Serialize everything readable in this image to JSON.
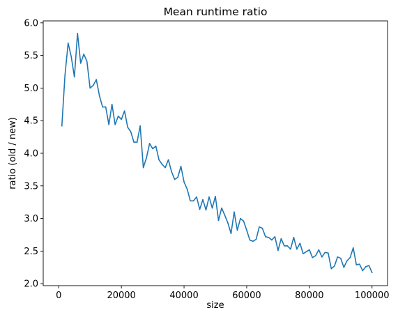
{
  "chart_data": {
    "type": "line",
    "title": "Mean runtime ratio",
    "xlabel": "size",
    "ylabel": "ratio (old / new)",
    "xlim": [
      -4950,
      104950
    ],
    "ylim": [
      1.97,
      6.03
    ],
    "xticks": [
      0,
      20000,
      40000,
      60000,
      80000,
      100000
    ],
    "xtick_labels": [
      "0",
      "20000",
      "40000",
      "60000",
      "80000",
      "100000"
    ],
    "yticks": [
      2.0,
      2.5,
      3.0,
      3.5,
      4.0,
      4.5,
      5.0,
      5.5,
      6.0
    ],
    "ytick_labels": [
      "2.0",
      "2.5",
      "3.0",
      "3.5",
      "4.0",
      "4.5",
      "5.0",
      "5.5",
      "6.0"
    ],
    "grid": false,
    "series": [
      {
        "color": "#1f77b4",
        "x": [
          1000,
          2000,
          3000,
          4000,
          5000,
          6000,
          7000,
          8000,
          9000,
          10000,
          11000,
          12000,
          13000,
          14000,
          15000,
          16000,
          17000,
          18000,
          19000,
          20000,
          21000,
          22000,
          23000,
          24000,
          25000,
          26000,
          27000,
          28000,
          29000,
          30000,
          31000,
          32000,
          33000,
          34000,
          35000,
          36000,
          37000,
          38000,
          39000,
          40000,
          41000,
          42000,
          43000,
          44000,
          45000,
          46000,
          47000,
          48000,
          49000,
          50000,
          51000,
          52000,
          53000,
          54000,
          55000,
          56000,
          57000,
          58000,
          59000,
          60000,
          61000,
          62000,
          63000,
          64000,
          65000,
          66000,
          67000,
          68000,
          69000,
          70000,
          71000,
          72000,
          73000,
          74000,
          75000,
          76000,
          77000,
          78000,
          79000,
          80000,
          81000,
          82000,
          83000,
          84000,
          85000,
          86000,
          87000,
          88000,
          89000,
          90000,
          91000,
          92000,
          93000,
          94000,
          95000,
          96000,
          97000,
          98000,
          99000,
          100000
        ],
        "y": [
          4.42,
          5.2,
          5.69,
          5.48,
          5.17,
          5.84,
          5.38,
          5.52,
          5.41,
          5.0,
          5.04,
          5.13,
          4.88,
          4.71,
          4.71,
          4.44,
          4.75,
          4.44,
          4.57,
          4.52,
          4.65,
          4.4,
          4.33,
          4.17,
          4.17,
          4.42,
          3.78,
          3.93,
          4.15,
          4.07,
          4.11,
          3.9,
          3.83,
          3.78,
          3.9,
          3.72,
          3.6,
          3.63,
          3.8,
          3.56,
          3.45,
          3.27,
          3.27,
          3.33,
          3.14,
          3.29,
          3.13,
          3.33,
          3.16,
          3.34,
          2.97,
          3.16,
          3.05,
          2.93,
          2.77,
          3.1,
          2.82,
          3.0,
          2.96,
          2.82,
          2.67,
          2.65,
          2.68,
          2.87,
          2.85,
          2.72,
          2.71,
          2.67,
          2.72,
          2.51,
          2.69,
          2.58,
          2.58,
          2.53,
          2.71,
          2.53,
          2.62,
          2.46,
          2.49,
          2.52,
          2.4,
          2.43,
          2.52,
          2.41,
          2.48,
          2.47,
          2.23,
          2.27,
          2.41,
          2.39,
          2.25,
          2.35,
          2.4,
          2.55,
          2.29,
          2.3,
          2.2,
          2.26,
          2.28,
          2.17
        ]
      }
    ]
  }
}
